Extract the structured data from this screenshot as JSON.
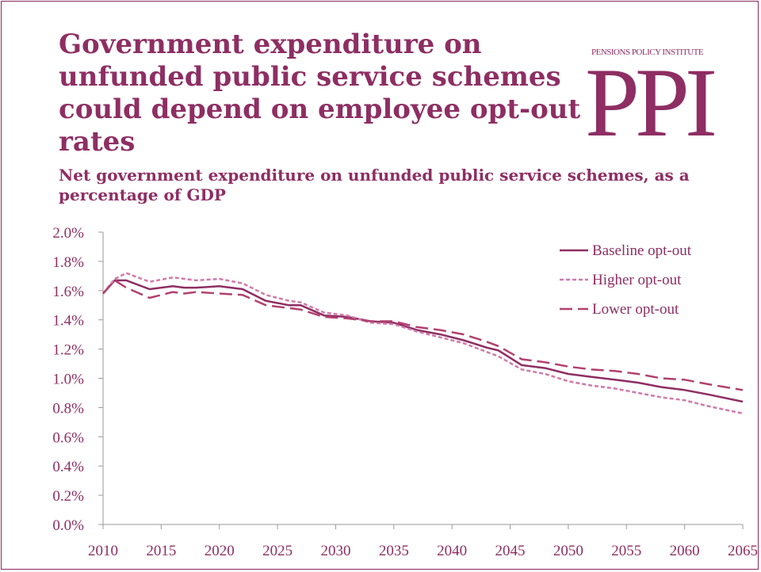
{
  "header": {
    "title": "Government expenditure on unfunded public service schemes could depend on employee opt-out rates",
    "subtitle": "Net government expenditure on unfunded public service schemes, as a percentage of GDP"
  },
  "logo": {
    "small_text": "PENSIONS POLICY INSTITUTE",
    "big_text": "PPI"
  },
  "colors": {
    "brand": "#8e2e63",
    "baseline": "#8e2e63",
    "higher": "#d07aa9",
    "lower": "#b2406f"
  },
  "chart_data": {
    "type": "line",
    "title": "",
    "xlabel": "",
    "ylabel": "",
    "xlim": [
      2010,
      2065
    ],
    "ylim": [
      0,
      2.0
    ],
    "x_ticks": [
      2010,
      2015,
      2020,
      2025,
      2030,
      2035,
      2040,
      2045,
      2050,
      2055,
      2060,
      2065
    ],
    "y_ticks": [
      "0.0%",
      "0.2%",
      "0.4%",
      "0.6%",
      "0.8%",
      "1.0%",
      "1.2%",
      "1.4%",
      "1.6%",
      "1.8%",
      "2.0%"
    ],
    "legend_position": "top-right",
    "series": [
      {
        "name": "Baseline opt-out",
        "style": "solid",
        "x": [
          2010,
          2011,
          2012,
          2014,
          2016,
          2017,
          2018,
          2020,
          2022,
          2024,
          2026,
          2027,
          2029,
          2031,
          2033,
          2035,
          2037,
          2039,
          2041,
          2043,
          2044,
          2046,
          2048,
          2050,
          2052,
          2054,
          2056,
          2058,
          2060,
          2062,
          2065
        ],
        "values": [
          1.58,
          1.67,
          1.67,
          1.61,
          1.63,
          1.62,
          1.62,
          1.63,
          1.61,
          1.53,
          1.5,
          1.5,
          1.43,
          1.42,
          1.39,
          1.38,
          1.33,
          1.3,
          1.26,
          1.21,
          1.19,
          1.09,
          1.07,
          1.03,
          1.01,
          0.99,
          0.97,
          0.94,
          0.92,
          0.89,
          0.84
        ]
      },
      {
        "name": "Higher opt-out",
        "style": "dotted",
        "x": [
          2010,
          2011,
          2012,
          2014,
          2016,
          2017,
          2018,
          2020,
          2022,
          2024,
          2026,
          2027,
          2029,
          2031,
          2033,
          2035,
          2037,
          2039,
          2041,
          2043,
          2044,
          2046,
          2048,
          2050,
          2052,
          2054,
          2056,
          2058,
          2060,
          2062,
          2065
        ],
        "values": [
          1.58,
          1.68,
          1.72,
          1.66,
          1.69,
          1.68,
          1.67,
          1.68,
          1.65,
          1.57,
          1.53,
          1.52,
          1.45,
          1.43,
          1.38,
          1.37,
          1.32,
          1.28,
          1.24,
          1.18,
          1.15,
          1.06,
          1.03,
          0.98,
          0.95,
          0.93,
          0.9,
          0.87,
          0.85,
          0.81,
          0.76
        ]
      },
      {
        "name": "Lower opt-out",
        "style": "dashed",
        "x": [
          2010,
          2011,
          2012,
          2014,
          2016,
          2017,
          2018,
          2020,
          2022,
          2024,
          2026,
          2027,
          2029,
          2031,
          2033,
          2035,
          2037,
          2039,
          2041,
          2043,
          2044,
          2046,
          2048,
          2050,
          2052,
          2054,
          2056,
          2058,
          2060,
          2062,
          2065
        ],
        "values": [
          1.58,
          1.67,
          1.62,
          1.55,
          1.59,
          1.58,
          1.59,
          1.58,
          1.57,
          1.5,
          1.48,
          1.47,
          1.42,
          1.41,
          1.39,
          1.39,
          1.35,
          1.33,
          1.3,
          1.25,
          1.22,
          1.13,
          1.11,
          1.08,
          1.06,
          1.05,
          1.03,
          1.0,
          0.99,
          0.96,
          0.92
        ]
      }
    ]
  }
}
